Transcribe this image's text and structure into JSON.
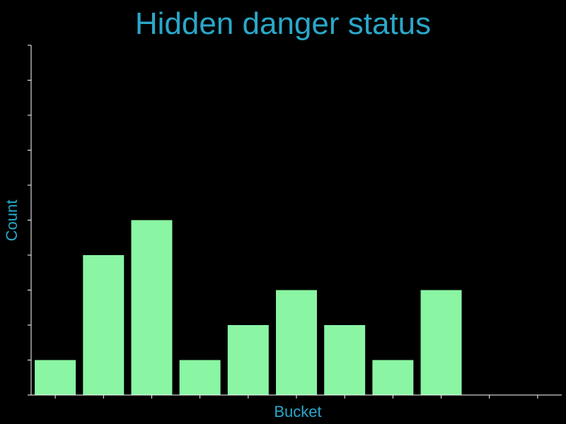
{
  "chart_data": {
    "type": "bar",
    "title": "Hidden danger status",
    "xlabel": "Bucket",
    "ylabel": "Count",
    "categories": [
      "",
      "",
      "",
      "",
      "",
      "",
      "",
      "",
      "",
      "",
      ""
    ],
    "values": [
      1,
      4,
      5,
      1,
      2,
      3,
      2,
      1,
      3,
      0,
      0
    ],
    "ylim": [
      0,
      10
    ],
    "y_tick_step": 1,
    "x_tick_labels_shown": false,
    "y_tick_labels_shown": false,
    "grid": false,
    "legend": "none",
    "colors": {
      "background": "#000000",
      "bar": "#8af5a3",
      "text": "#2aa7c9",
      "axis": "#ffffff"
    }
  }
}
